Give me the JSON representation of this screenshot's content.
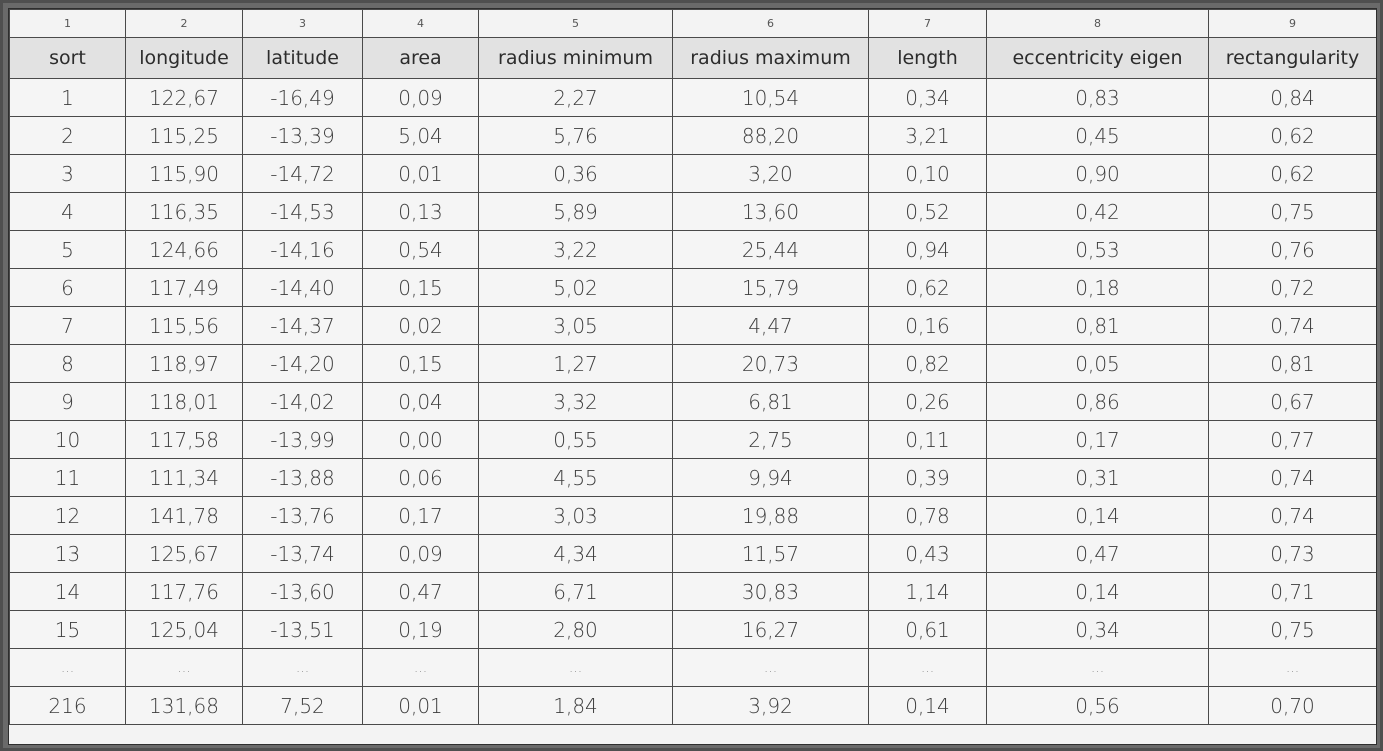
{
  "column_numbers": [
    "1",
    "2",
    "3",
    "4",
    "5",
    "6",
    "7",
    "8",
    "9"
  ],
  "headers": [
    "sort",
    "longitude",
    "latitude",
    "area",
    "radius minimum",
    "radius maximum",
    "length",
    "eccentricity eigen",
    "rectangularity"
  ],
  "rows": [
    [
      "1",
      "122,67",
      "-16,49",
      "0,09",
      "2,27",
      "10,54",
      "0,34",
      "0,83",
      "0,84"
    ],
    [
      "2",
      "115,25",
      "-13,39",
      "5,04",
      "5,76",
      "88,20",
      "3,21",
      "0,45",
      "0,62"
    ],
    [
      "3",
      "115,90",
      "-14,72",
      "0,01",
      "0,36",
      "3,20",
      "0,10",
      "0,90",
      "0,62"
    ],
    [
      "4",
      "116,35",
      "-14,53",
      "0,13",
      "5,89",
      "13,60",
      "0,52",
      "0,42",
      "0,75"
    ],
    [
      "5",
      "124,66",
      "-14,16",
      "0,54",
      "3,22",
      "25,44",
      "0,94",
      "0,53",
      "0,76"
    ],
    [
      "6",
      "117,49",
      "-14,40",
      "0,15",
      "5,02",
      "15,79",
      "0,62",
      "0,18",
      "0,72"
    ],
    [
      "7",
      "115,56",
      "-14,37",
      "0,02",
      "3,05",
      "4,47",
      "0,16",
      "0,81",
      "0,74"
    ],
    [
      "8",
      "118,97",
      "-14,20",
      "0,15",
      "1,27",
      "20,73",
      "0,82",
      "0,05",
      "0,81"
    ],
    [
      "9",
      "118,01",
      "-14,02",
      "0,04",
      "3,32",
      "6,81",
      "0,26",
      "0,86",
      "0,67"
    ],
    [
      "10",
      "117,58",
      "-13,99",
      "0,00",
      "0,55",
      "2,75",
      "0,11",
      "0,17",
      "0,77"
    ],
    [
      "11",
      "111,34",
      "-13,88",
      "0,06",
      "4,55",
      "9,94",
      "0,39",
      "0,31",
      "0,74"
    ],
    [
      "12",
      "141,78",
      "-13,76",
      "0,17",
      "3,03",
      "19,88",
      "0,78",
      "0,14",
      "0,74"
    ],
    [
      "13",
      "125,67",
      "-13,74",
      "0,09",
      "4,34",
      "11,57",
      "0,43",
      "0,47",
      "0,73"
    ],
    [
      "14",
      "117,76",
      "-13,60",
      "0,47",
      "6,71",
      "30,83",
      "1,14",
      "0,14",
      "0,71"
    ],
    [
      "15",
      "125,04",
      "-13,51",
      "0,19",
      "2,80",
      "16,27",
      "0,61",
      "0,34",
      "0,75"
    ],
    [
      "...",
      "...",
      "...",
      "...",
      "...",
      "...",
      "...",
      "...",
      "..."
    ],
    [
      "216",
      "131,68",
      "7,52",
      "0,01",
      "1,84",
      "3,92",
      "0,14",
      "0,56",
      "0,70"
    ]
  ]
}
